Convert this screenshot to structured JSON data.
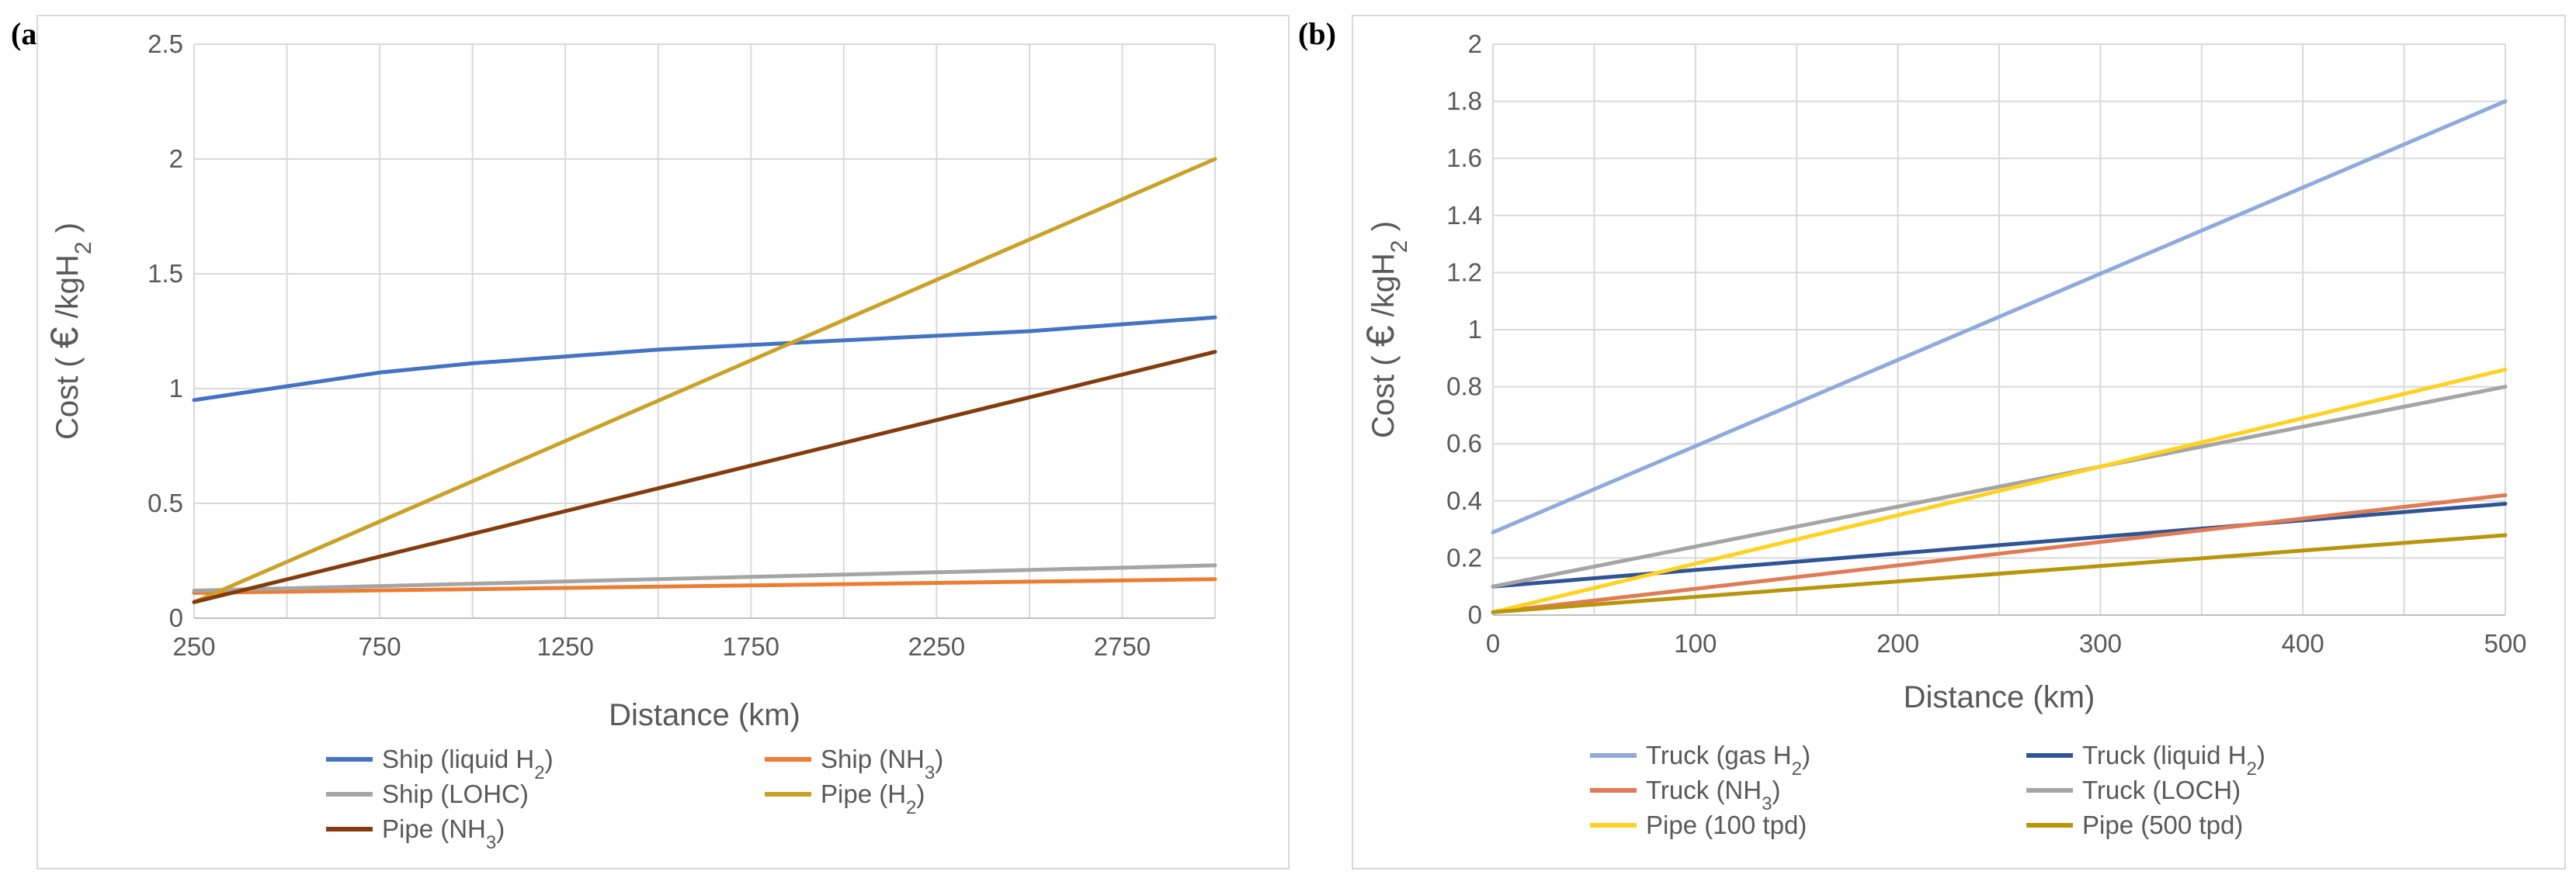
{
  "chart_data": [
    {
      "panel": "(a)",
      "type": "line",
      "xlabel": "Distance (km)",
      "ylabel_prefix": "Cost ( ",
      "ylabel_euro": "€",
      "ylabel_unit": " /kgH",
      "ylabel_sub": "2",
      "ylabel_suffix": " )",
      "xlim": [
        250,
        3000
      ],
      "ylim": [
        0,
        2.5
      ],
      "xticks": [
        250,
        750,
        1250,
        1750,
        2250,
        2750
      ],
      "xtick_labels": [
        "250",
        "750",
        "1250",
        "1750",
        "2250",
        "2750"
      ],
      "yticks": [
        0,
        0.5,
        1,
        1.5,
        2,
        2.5
      ],
      "ytick_labels": [
        "0",
        "0.5",
        "1",
        "1.5",
        "2",
        "2.5"
      ],
      "series": [
        {
          "name": "Ship (liquid H",
          "sub": "2",
          "suffix": ")",
          "color": "#4472c4",
          "x": [
            250,
            500,
            750,
            1000,
            1250,
            1500,
            1750,
            2000,
            2250,
            2500,
            2750,
            3000
          ],
          "y": [
            0.95,
            1.01,
            1.07,
            1.11,
            1.14,
            1.17,
            1.19,
            1.21,
            1.23,
            1.25,
            1.28,
            1.31
          ]
        },
        {
          "name": "Ship (NH",
          "sub": "3",
          "suffix": ")",
          "color": "#ed7d31",
          "x": [
            250,
            3000
          ],
          "y": [
            0.11,
            0.17
          ]
        },
        {
          "name": "Ship (LOHC)",
          "sub": "",
          "suffix": "",
          "color": "#a5a5a5",
          "x": [
            250,
            3000
          ],
          "y": [
            0.12,
            0.23
          ]
        },
        {
          "name": "Pipe (H",
          "sub": "2",
          "suffix": ")",
          "color": "#c9a227",
          "x": [
            250,
            3000
          ],
          "y": [
            0.07,
            2.0
          ]
        },
        {
          "name": "Pipe (NH",
          "sub": "3",
          "suffix": ")",
          "color": "#843c0c",
          "x": [
            250,
            3000
          ],
          "y": [
            0.07,
            1.16
          ]
        }
      ]
    },
    {
      "panel": "(b)",
      "type": "line",
      "xlabel": "Distance (km)",
      "ylabel_prefix": "Cost ( ",
      "ylabel_euro": "€",
      "ylabel_unit": " /kgH",
      "ylabel_sub": "2",
      "ylabel_suffix": " )",
      "xlim": [
        0,
        500
      ],
      "ylim": [
        0,
        2
      ],
      "xticks": [
        0,
        100,
        200,
        300,
        400,
        500
      ],
      "xtick_labels": [
        "0",
        "100",
        "200",
        "300",
        "400",
        "500"
      ],
      "yticks": [
        0,
        0.2,
        0.4,
        0.6,
        0.8,
        1,
        1.2,
        1.4,
        1.6,
        1.8,
        2
      ],
      "ytick_labels": [
        "0",
        "0.2",
        "0.4",
        "0.6",
        "0.8",
        "1",
        "1.2",
        "1.4",
        "1.6",
        "1.8",
        "2"
      ],
      "series": [
        {
          "name": "Truck (gas H",
          "sub": "2",
          "suffix": ")",
          "color": "#8faadc",
          "x": [
            0,
            500
          ],
          "y": [
            0.29,
            1.8
          ]
        },
        {
          "name": "Truck (liquid H",
          "sub": "2",
          "suffix": ")",
          "color": "#2f5597",
          "x": [
            0,
            500
          ],
          "y": [
            0.1,
            0.39
          ]
        },
        {
          "name": "Truck (NH",
          "sub": "3",
          "suffix": ")",
          "color": "#e07b54",
          "x": [
            0,
            500
          ],
          "y": [
            0.01,
            0.42
          ]
        },
        {
          "name": "Truck (LOCH)",
          "sub": "",
          "suffix": "",
          "color": "#a5a5a5",
          "x": [
            0,
            500
          ],
          "y": [
            0.1,
            0.8
          ]
        },
        {
          "name": "Pipe (100 tpd)",
          "sub": "",
          "suffix": "",
          "color": "#ffd21f",
          "x": [
            0,
            500
          ],
          "y": [
            0.01,
            0.86
          ]
        },
        {
          "name": "Pipe (500 tpd)",
          "sub": "",
          "suffix": "",
          "color": "#b8960c",
          "x": [
            0,
            500
          ],
          "y": [
            0.01,
            0.28
          ]
        }
      ]
    }
  ]
}
